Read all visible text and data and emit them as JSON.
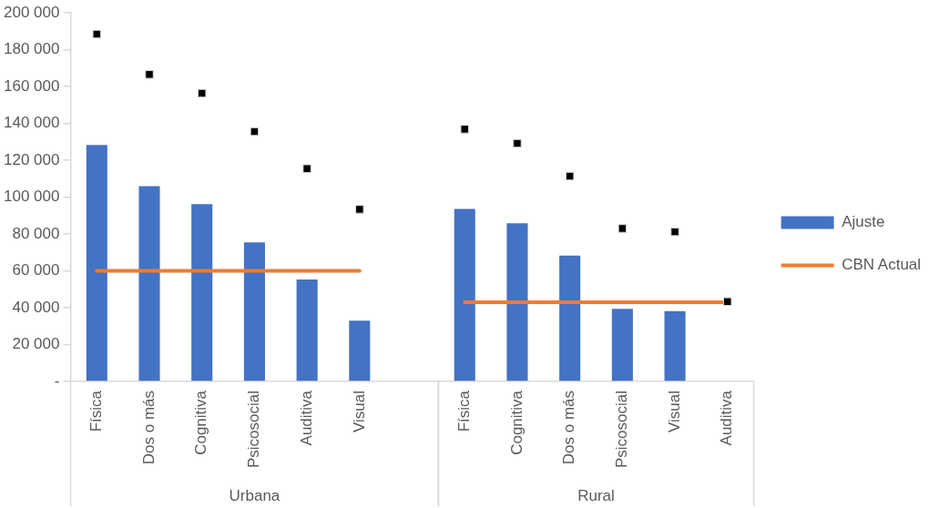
{
  "chart_data": {
    "type": "bar",
    "categories": [
      "Física",
      "Dos o más",
      "Cognitiva",
      "Psicosocial",
      "Auditiva",
      "Visual",
      null,
      "Física",
      "Cognitiva",
      "Dos o más",
      "Psicosocial",
      "Visual",
      "Auditiva"
    ],
    "series": [
      {
        "name": "Ajuste",
        "color": "#4472c4",
        "values": [
          128300,
          106000,
          96200,
          75400,
          55300,
          33000,
          null,
          93600,
          85800,
          68300,
          39400,
          38100,
          0
        ]
      },
      {
        "name": "CBN Actual",
        "type": "line",
        "color": "#ed7d31",
        "marker": "none",
        "values": [
          60000,
          60000,
          60000,
          60000,
          60000,
          60000,
          null,
          43000,
          43000,
          43000,
          43000,
          43000,
          43000
        ]
      },
      {
        "type": "scatter",
        "color": "#000000",
        "marker": "square",
        "values": [
          188500,
          166600,
          156400,
          135600,
          115500,
          93400,
          null,
          136900,
          129200,
          111400,
          83000,
          81200,
          43300
        ]
      }
    ],
    "ylim": [
      0,
      200000
    ],
    "yticks": [
      {
        "value": 0,
        "label": "-"
      },
      {
        "value": 20000,
        "label": "20 000"
      },
      {
        "value": 40000,
        "label": "40 000"
      },
      {
        "value": 60000,
        "label": "60 000"
      },
      {
        "value": 80000,
        "label": "80 000"
      },
      {
        "value": 100000,
        "label": "100 000"
      },
      {
        "value": 120000,
        "label": "120 000"
      },
      {
        "value": 140000,
        "label": "140 000"
      },
      {
        "value": 160000,
        "label": "160 000"
      },
      {
        "value": 180000,
        "label": "180 000"
      },
      {
        "value": 200000,
        "label": "200 000"
      }
    ],
    "annotations": [
      "Urbana",
      "Rural"
    ],
    "grid": false,
    "legend": "right"
  }
}
